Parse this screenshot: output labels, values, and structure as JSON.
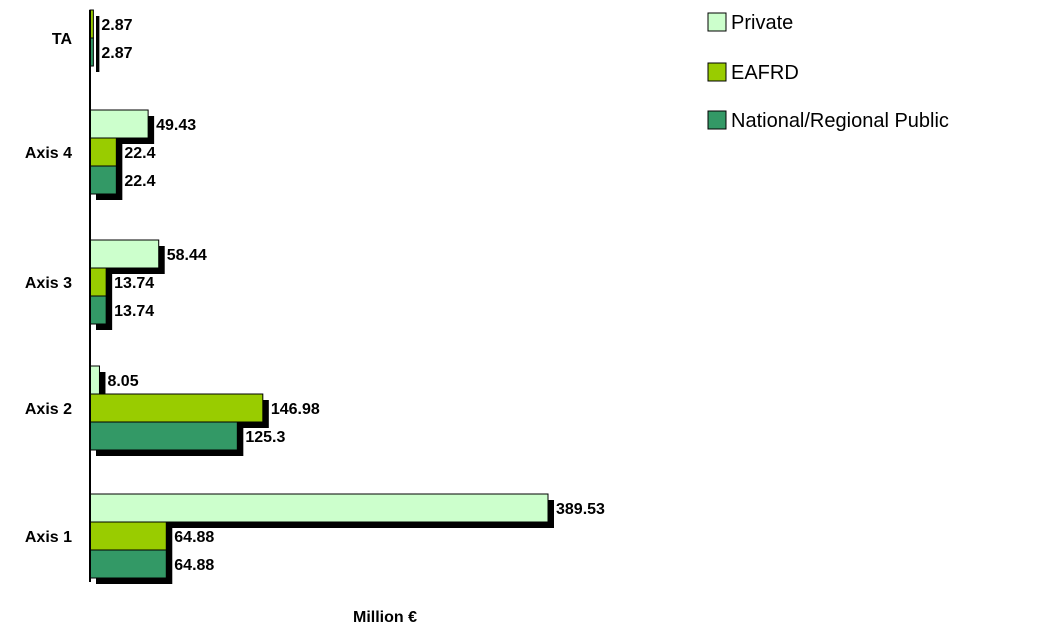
{
  "chart_data": {
    "type": "bar",
    "orientation": "horizontal",
    "categories": [
      "TA",
      "Axis 4",
      "Axis 3",
      "Axis 2",
      "Axis 1"
    ],
    "series": [
      {
        "name": "Private",
        "color": "#ccffcc",
        "values": [
          null,
          49.43,
          58.44,
          8.05,
          389.53
        ]
      },
      {
        "name": "EAFRD",
        "color": "#99cc00",
        "values": [
          2.87,
          22.4,
          13.74,
          146.98,
          64.88
        ]
      },
      {
        "name": "National/Regional Public",
        "color": "#339966",
        "values": [
          2.87,
          22.4,
          13.74,
          125.3,
          64.88
        ]
      }
    ],
    "value_labels": [
      [
        null,
        "49.43",
        "58.44",
        "8.05",
        "389.53"
      ],
      [
        "2.87",
        "22.4",
        "13.74",
        "146.98",
        "64.88"
      ],
      [
        "2.87",
        "22.4",
        "13.74",
        "125.3",
        "64.88"
      ]
    ],
    "xlabel": "Million €",
    "ylabel": "",
    "title": "",
    "xlim": [
      0,
      389.53
    ],
    "grid": false,
    "legend": "top-right",
    "shadow": true
  }
}
